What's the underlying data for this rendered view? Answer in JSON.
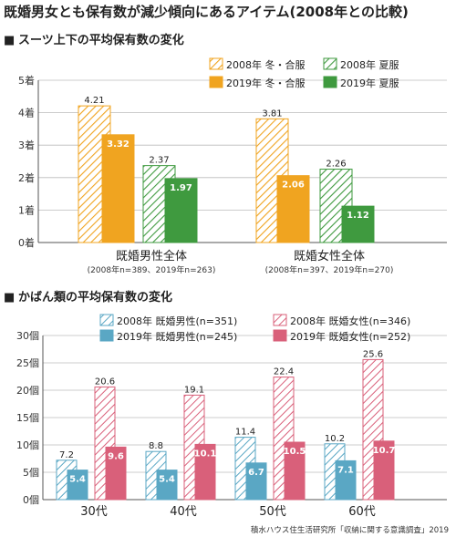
{
  "title": "既婚男女とも保有数が減少傾向にあるアイテム(2008年との比較)",
  "source": "積水ハウス住生活研究所「収納に関する意識調査」2019",
  "chart_data": [
    {
      "type": "bar",
      "section_marker": "■",
      "title": "スーツ上下の平均保有数の変化",
      "unit": "着",
      "ylim": [
        0,
        5
      ],
      "ticks": [
        "0着",
        "1着",
        "2着",
        "3着",
        "4着",
        "5着"
      ],
      "categories": [
        "既婚男性全体",
        "既婚女性全体"
      ],
      "category_notes": [
        "(2008年n=389、2019年n=263)",
        "(2008年n=397、2019年n=270)"
      ],
      "series": [
        {
          "name": "2008年 冬・合服",
          "values": [
            4.21,
            3.81
          ],
          "labels": [
            "4.21",
            "3.81"
          ],
          "color": "#f0a420",
          "pattern": "hatch"
        },
        {
          "name": "2019年 冬・合服",
          "values": [
            3.32,
            2.06
          ],
          "labels": [
            "3.32",
            "2.06"
          ],
          "color": "#f0a420",
          "pattern": "solid"
        },
        {
          "name": "2008年 夏服",
          "values": [
            2.37,
            2.26
          ],
          "labels": [
            "2.37",
            "2.26"
          ],
          "color": "#3f9a3f",
          "pattern": "hatch"
        },
        {
          "name": "2019年 夏服",
          "values": [
            1.97,
            1.12
          ],
          "labels": [
            "1.97",
            "1.12"
          ],
          "color": "#3f9a3f",
          "pattern": "solid"
        }
      ]
    },
    {
      "type": "bar",
      "section_marker": "■",
      "title": "かばん類の平均保有数の変化",
      "unit": "個",
      "ylim": [
        0,
        30
      ],
      "ticks": [
        "0個",
        "5個",
        "10個",
        "15個",
        "20個",
        "25個",
        "30個"
      ],
      "categories": [
        "30代",
        "40代",
        "50代",
        "60代"
      ],
      "series": [
        {
          "name": "2008年 既婚男性(n=351)",
          "values": [
            7.2,
            8.8,
            11.4,
            10.2
          ],
          "labels": [
            "7.2",
            "8.8",
            "11.4",
            "10.2"
          ],
          "color": "#5aa7c4",
          "pattern": "hatch"
        },
        {
          "name": "2019年 既婚男性(n=245)",
          "values": [
            5.4,
            5.4,
            6.7,
            7.1
          ],
          "labels": [
            "5.4",
            "5.4",
            "6.7",
            "7.1"
          ],
          "color": "#5aa7c4",
          "pattern": "solid"
        },
        {
          "name": "2008年 既婚女性(n=346)",
          "values": [
            20.6,
            19.1,
            22.4,
            25.6
          ],
          "labels": [
            "20.6",
            "19.1",
            "22.4",
            "25.6"
          ],
          "color": "#d9607a",
          "pattern": "hatch"
        },
        {
          "name": "2019年 既婚女性(n=252)",
          "values": [
            9.6,
            10.1,
            10.5,
            10.7
          ],
          "labels": [
            "9.6",
            "10.1",
            "10.5",
            "10.7"
          ],
          "color": "#d9607a",
          "pattern": "solid"
        }
      ]
    }
  ]
}
